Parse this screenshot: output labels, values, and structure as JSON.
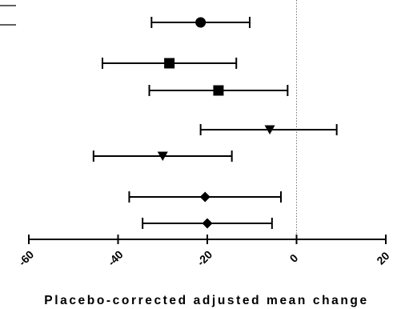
{
  "chart_data": {
    "type": "scatter",
    "subtype": "forest-plot",
    "title": "",
    "xlabel": "Placebo-corrected adjusted mean change",
    "ylabel": "",
    "xlim": [
      -60,
      20
    ],
    "xticks": [
      -60,
      -40,
      -20,
      0,
      20
    ],
    "xtick_labels": [
      "-60",
      "-40",
      "-20",
      "0",
      "20"
    ],
    "reference_line": {
      "x": 0,
      "style": "dotted"
    },
    "grid": false,
    "legend": "partially visible at top-left",
    "series": [
      {
        "marker": "circle",
        "estimate": -21.5,
        "ci_low": -32.5,
        "ci_high": -10.5
      },
      {
        "marker": "square",
        "estimate": -28.5,
        "ci_low": -43.5,
        "ci_high": -13.5
      },
      {
        "marker": "square",
        "estimate": -17.5,
        "ci_low": -33.0,
        "ci_high": -2.0
      },
      {
        "marker": "triangle-down",
        "estimate": -6.0,
        "ci_low": -21.5,
        "ci_high": 9.0
      },
      {
        "marker": "triangle-down",
        "estimate": -30.0,
        "ci_low": -45.5,
        "ci_high": -14.5
      },
      {
        "marker": "diamond",
        "estimate": -20.5,
        "ci_low": -37.5,
        "ci_high": -3.5
      },
      {
        "marker": "diamond",
        "estimate": -20.0,
        "ci_low": -34.5,
        "ci_high": -5.5
      }
    ],
    "marker_color": "#000000"
  }
}
